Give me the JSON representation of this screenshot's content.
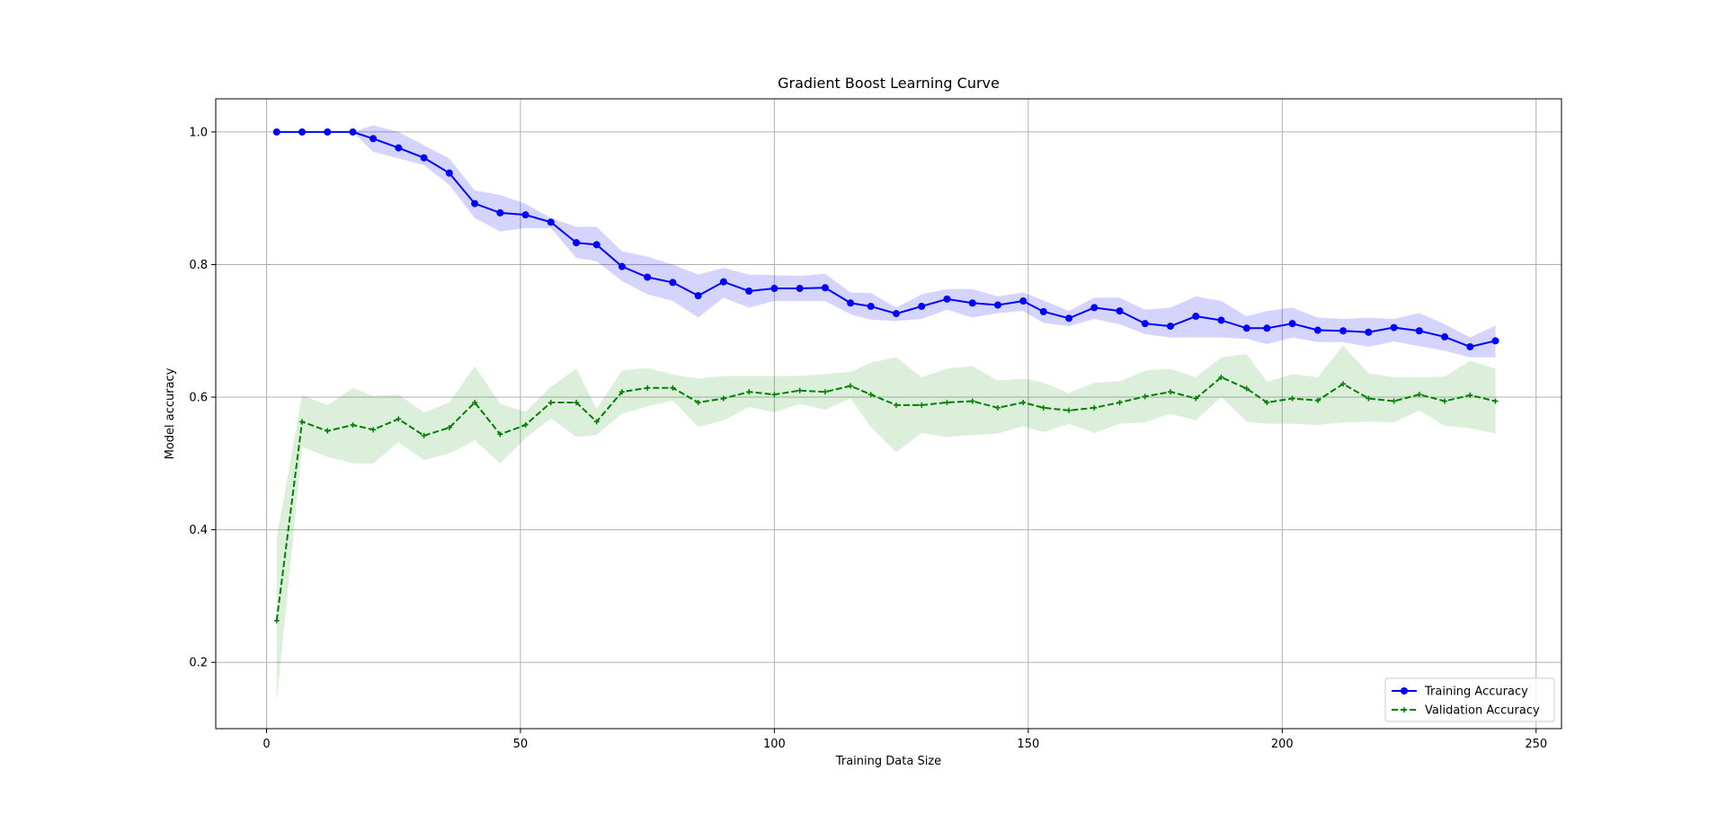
{
  "chart_data": {
    "type": "line",
    "title": "Gradient Boost Learning Curve",
    "xlabel": "Training Data Size",
    "ylabel": "Model accuracy",
    "xlim": [
      -10,
      255
    ],
    "ylim": [
      0.1,
      1.05
    ],
    "xticks": [
      0,
      50,
      100,
      150,
      200,
      250
    ],
    "yticks": [
      0.2,
      0.4,
      0.6,
      0.8,
      1.0
    ],
    "xtick_labels": [
      "0",
      "50",
      "100",
      "150",
      "200",
      "250"
    ],
    "ytick_labels": [
      "0.2",
      "0.4",
      "0.6",
      "0.8",
      "1.0"
    ],
    "grid": true,
    "legend_position": "bottom-right",
    "x": [
      2,
      7,
      12,
      17,
      21,
      26,
      31,
      36,
      41,
      46,
      51,
      56,
      61,
      65,
      70,
      75,
      80,
      85,
      90,
      95,
      100,
      105,
      110,
      115,
      119,
      124,
      129,
      134,
      139,
      144,
      149,
      153,
      158,
      163,
      168,
      173,
      178,
      183,
      188,
      193,
      197,
      202,
      207,
      212,
      217,
      222,
      227,
      232,
      237,
      242
    ],
    "series": [
      {
        "name": "Training Accuracy",
        "color": "#0000ff",
        "line_style": "solid",
        "marker": "circle",
        "band_color": "#0000ff",
        "values": [
          1.0,
          1.0,
          1.0,
          1.0,
          0.99,
          0.976,
          0.961,
          0.938,
          0.892,
          0.878,
          0.875,
          0.864,
          0.833,
          0.83,
          0.797,
          0.781,
          0.773,
          0.753,
          0.774,
          0.76,
          0.764,
          0.764,
          0.765,
          0.742,
          0.737,
          0.726,
          0.737,
          0.748,
          0.742,
          0.739,
          0.745,
          0.729,
          0.719,
          0.735,
          0.73,
          0.711,
          0.707,
          0.722,
          0.716,
          0.704,
          0.704,
          0.711,
          0.701,
          0.7,
          0.698,
          0.705,
          0.7,
          0.691,
          0.676,
          0.685
        ],
        "band_low": [
          1.0,
          1.0,
          1.0,
          1.0,
          0.97,
          0.96,
          0.95,
          0.92,
          0.87,
          0.85,
          0.855,
          0.855,
          0.81,
          0.805,
          0.775,
          0.755,
          0.745,
          0.72,
          0.75,
          0.735,
          0.745,
          0.745,
          0.745,
          0.725,
          0.717,
          0.715,
          0.718,
          0.732,
          0.72,
          0.727,
          0.73,
          0.712,
          0.707,
          0.718,
          0.71,
          0.695,
          0.69,
          0.69,
          0.69,
          0.688,
          0.68,
          0.69,
          0.683,
          0.683,
          0.676,
          0.684,
          0.677,
          0.67,
          0.66,
          0.66
        ],
        "band_high": [
          1.0,
          1.0,
          1.0,
          1.0,
          1.01,
          1.0,
          0.98,
          0.96,
          0.912,
          0.905,
          0.892,
          0.87,
          0.857,
          0.857,
          0.82,
          0.812,
          0.8,
          0.785,
          0.795,
          0.785,
          0.784,
          0.783,
          0.786,
          0.758,
          0.757,
          0.735,
          0.755,
          0.763,
          0.763,
          0.752,
          0.758,
          0.746,
          0.73,
          0.75,
          0.75,
          0.732,
          0.735,
          0.752,
          0.745,
          0.722,
          0.73,
          0.735,
          0.72,
          0.718,
          0.72,
          0.718,
          0.727,
          0.71,
          0.69,
          0.708
        ]
      },
      {
        "name": "Validation Accuracy",
        "color": "#008000",
        "line_style": "dashed",
        "marker": "plus",
        "band_color": "#2ca02c",
        "values": [
          0.263,
          0.563,
          0.549,
          0.558,
          0.551,
          0.567,
          0.542,
          0.554,
          0.592,
          0.544,
          0.558,
          0.592,
          0.592,
          0.563,
          0.608,
          0.614,
          0.614,
          0.592,
          0.598,
          0.608,
          0.604,
          0.61,
          0.608,
          0.617,
          0.604,
          0.588,
          0.588,
          0.592,
          0.594,
          0.584,
          0.592,
          0.584,
          0.58,
          0.584,
          0.592,
          0.601,
          0.608,
          0.598,
          0.63,
          0.613,
          0.592,
          0.598,
          0.595,
          0.62,
          0.598,
          0.594,
          0.604,
          0.594,
          0.603,
          0.594
        ],
        "band_low": [
          0.14,
          0.525,
          0.51,
          0.5,
          0.5,
          0.532,
          0.505,
          0.515,
          0.535,
          0.5,
          0.538,
          0.568,
          0.54,
          0.543,
          0.575,
          0.586,
          0.595,
          0.555,
          0.565,
          0.585,
          0.577,
          0.59,
          0.581,
          0.598,
          0.555,
          0.517,
          0.546,
          0.54,
          0.543,
          0.545,
          0.556,
          0.547,
          0.56,
          0.546,
          0.56,
          0.562,
          0.575,
          0.565,
          0.6,
          0.563,
          0.56,
          0.56,
          0.558,
          0.562,
          0.563,
          0.562,
          0.58,
          0.557,
          0.553,
          0.545
        ],
        "band_high": [
          0.388,
          0.603,
          0.588,
          0.614,
          0.602,
          0.604,
          0.577,
          0.592,
          0.647,
          0.59,
          0.578,
          0.616,
          0.643,
          0.583,
          0.64,
          0.644,
          0.634,
          0.628,
          0.632,
          0.632,
          0.632,
          0.632,
          0.635,
          0.638,
          0.652,
          0.66,
          0.63,
          0.643,
          0.647,
          0.625,
          0.628,
          0.622,
          0.606,
          0.622,
          0.624,
          0.64,
          0.643,
          0.63,
          0.66,
          0.665,
          0.623,
          0.635,
          0.63,
          0.678,
          0.636,
          0.63,
          0.63,
          0.631,
          0.655,
          0.643
        ]
      }
    ]
  }
}
